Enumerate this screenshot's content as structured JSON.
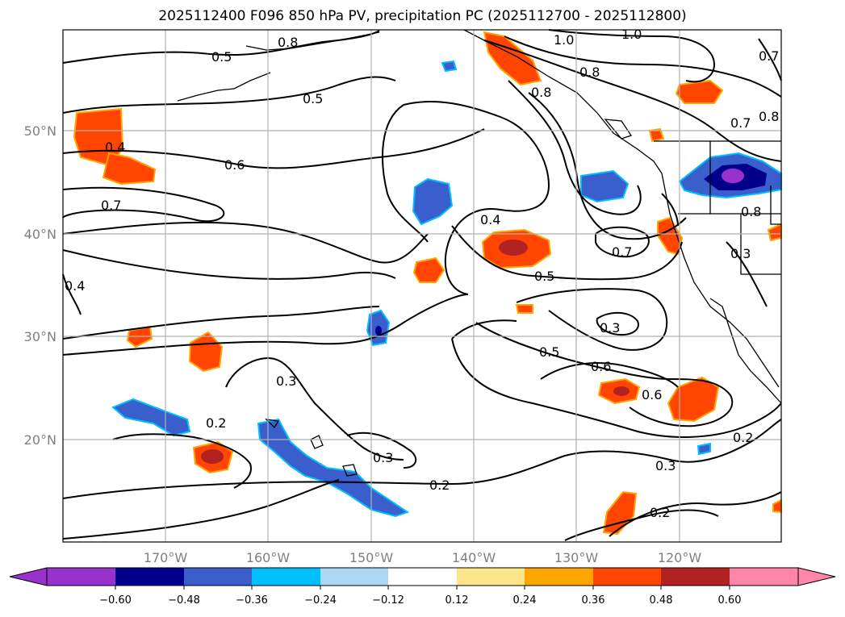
{
  "title": "2025112400 F096 850 hPa PV, precipitation PC (2025112700 - 2025112800)",
  "map": {
    "lat_ticks": [
      "50°N",
      "40°N",
      "30°N",
      "20°N"
    ],
    "lon_ticks": [
      "170°W",
      "160°W",
      "150°W",
      "140°W",
      "130°W",
      "120°W"
    ],
    "lon_range": [
      -180,
      -110
    ],
    "lat_range": [
      10,
      60
    ],
    "grid": true,
    "contour_labels": [
      "0.8",
      "0.5",
      "0.5",
      "1.0",
      "1.0",
      "0.8",
      "0.7",
      "0.8",
      "0.8",
      "0.7",
      "0.4",
      "0.6",
      "0.7",
      "0.4",
      "0.4",
      "0.7",
      "0.5",
      "0.8",
      "0.3",
      "0.3",
      "0.5",
      "0.6",
      "0.6",
      "0.3",
      "0.2",
      "0.3",
      "0.2",
      "0.3",
      "0.2",
      "0.2"
    ]
  },
  "colorbar": {
    "ticks": [
      "−0.60",
      "−0.48",
      "−0.36",
      "−0.24",
      "−0.12",
      "0.12",
      "0.24",
      "0.36",
      "0.48",
      "0.60"
    ],
    "colors": [
      "#9932cc",
      "#00008b",
      "#3a5fcd",
      "#00bfff",
      "#add8f5",
      "#ffffff",
      "#fde68a",
      "#ffa500",
      "#ff4500",
      "#b22222",
      "#ff85a9"
    ]
  },
  "colors": {
    "contour": "#000000",
    "coast": "#000000",
    "grid": "#b0b0b0",
    "tick_text": "#808080"
  }
}
